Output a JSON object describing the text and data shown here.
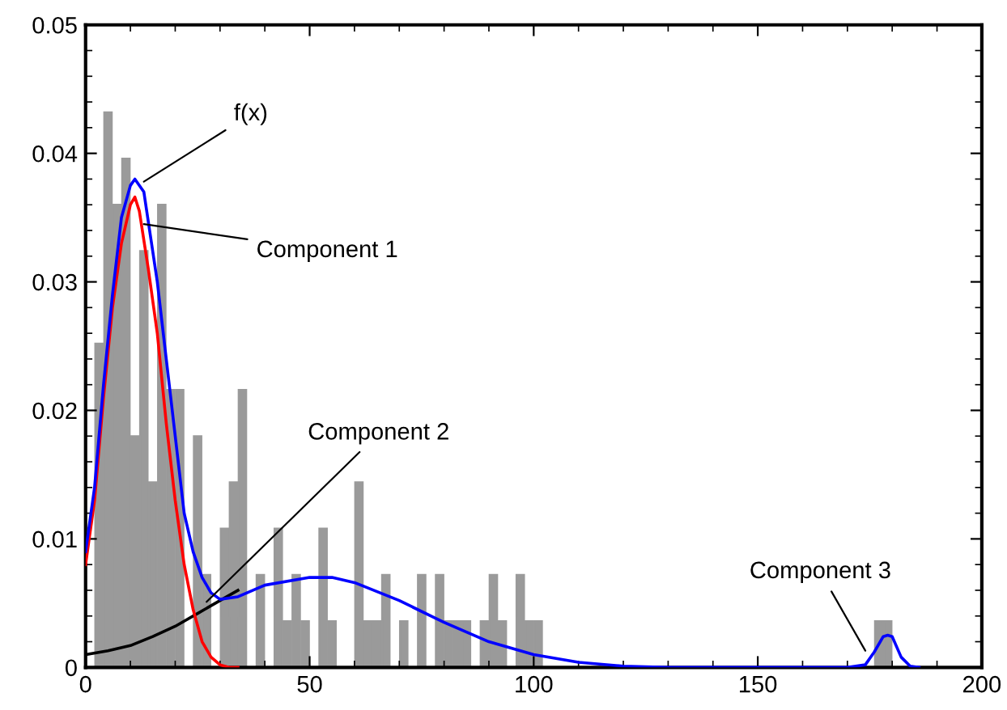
{
  "chart_data": {
    "type": "histogram",
    "bins": [
      2,
      4,
      6,
      8,
      10,
      12,
      14,
      16,
      18,
      20,
      22,
      24,
      26,
      28,
      30,
      32,
      34,
      36,
      38,
      40,
      42,
      44,
      46,
      48,
      50,
      52,
      54,
      56,
      58,
      60,
      62,
      64,
      66,
      68,
      70,
      72,
      74,
      76,
      78,
      80,
      82,
      84,
      86,
      88,
      90,
      92,
      94,
      96,
      98,
      100,
      102,
      104,
      106,
      108,
      110,
      112,
      114,
      116,
      118,
      120,
      122,
      124,
      126,
      128,
      130,
      132,
      134,
      136,
      138,
      140,
      142,
      144,
      146,
      148,
      150,
      152,
      154,
      156,
      158,
      160,
      162,
      164,
      166,
      168,
      170,
      172,
      174,
      176,
      178,
      180
    ],
    "values": [
      0.0252,
      0.0432,
      0.036,
      0.0396,
      0.018,
      0.0324,
      0.0144,
      0.036,
      0.0216,
      0.0216,
      0,
      0.018,
      0.0072,
      0,
      0.0108,
      0.0144,
      0.0216,
      0,
      0.0072,
      0,
      0.0108,
      0.0036,
      0.0072,
      0.0036,
      0,
      0.0108,
      0.0036,
      0,
      0,
      0.0144,
      0.0036,
      0.0036,
      0.0072,
      0,
      0.0036,
      0,
      0.0072,
      0,
      0.0072,
      0.0036,
      0.0036,
      0.0036,
      0,
      0.0036,
      0.0072,
      0.0036,
      0,
      0.0072,
      0.0036,
      0.0036,
      0,
      0,
      0,
      0,
      0,
      0,
      0,
      0,
      0,
      0,
      0,
      0,
      0,
      0,
      0,
      0,
      0,
      0,
      0,
      0,
      0,
      0,
      0,
      0,
      0,
      0,
      0,
      0,
      0,
      0,
      0,
      0,
      0,
      0,
      0,
      0,
      0,
      0.0036,
      0.0036
    ],
    "color": "#9a9a9a",
    "series": [
      {
        "type": "line",
        "color": "#000000",
        "x": [
          0,
          5,
          10,
          15,
          20,
          25,
          30,
          34
        ],
        "values": [
          0.001,
          0.0013,
          0.0017,
          0.0024,
          0.0032,
          0.0042,
          0.0052,
          0.006
        ]
      },
      {
        "type": "line",
        "color": "#ff0000",
        "x": [
          0,
          2,
          4,
          6,
          8,
          10,
          11,
          12,
          14,
          16,
          18,
          20,
          22,
          24,
          26,
          28,
          30,
          32,
          34
        ],
        "values": [
          0.008,
          0.013,
          0.021,
          0.028,
          0.033,
          0.036,
          0.0366,
          0.0355,
          0.031,
          0.026,
          0.019,
          0.013,
          0.008,
          0.0045,
          0.002,
          0.0008,
          0.0002,
          0,
          0
        ]
      },
      {
        "type": "line",
        "color": "#0000ff",
        "x": [
          0,
          2,
          4,
          6,
          8,
          10,
          11,
          13,
          16,
          18,
          20,
          22,
          24,
          26,
          28,
          30,
          34,
          40,
          50,
          55,
          60,
          70,
          80,
          90,
          100,
          110,
          120,
          130,
          170,
          174,
          176,
          178,
          179,
          180,
          182,
          184,
          186
        ],
        "values": [
          0.009,
          0.014,
          0.022,
          0.029,
          0.035,
          0.0375,
          0.038,
          0.037,
          0.03,
          0.024,
          0.018,
          0.012,
          0.009,
          0.007,
          0.0058,
          0.0053,
          0.0055,
          0.0064,
          0.007,
          0.007,
          0.0066,
          0.0052,
          0.0035,
          0.002,
          0.001,
          0.0004,
          0.0001,
          0,
          0,
          0.0002,
          0.0012,
          0.0024,
          0.0025,
          0.0024,
          0.0008,
          0.0001,
          0
        ]
      }
    ],
    "annotations": [
      {
        "text": "f(x)",
        "x": 13,
        "y": 0.0378
      },
      {
        "text": "Component 1",
        "x": 13,
        "y": 0.0345
      },
      {
        "text": "Component 2",
        "x": 27,
        "y": 0.0051
      },
      {
        "text": "Component 3",
        "x": 174,
        "y": 0.0013
      }
    ],
    "xlim": [
      0,
      200
    ],
    "xticks": [
      0,
      50,
      100,
      150,
      200
    ],
    "ylim": [
      0,
      0.05
    ],
    "yticks": [
      0,
      0.01,
      0.02,
      0.03,
      0.04,
      0.05
    ],
    "grid": false,
    "legend": false
  }
}
